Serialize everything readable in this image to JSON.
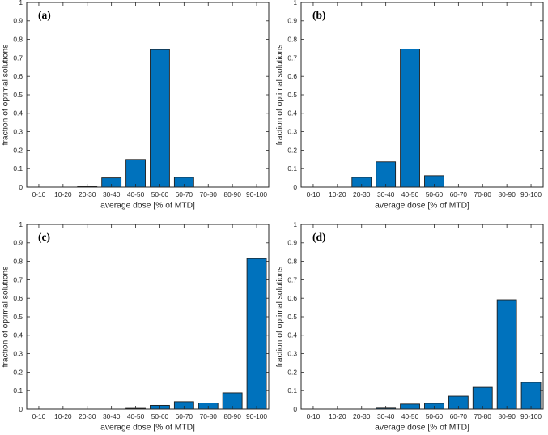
{
  "style": {
    "background": "#ffffff",
    "bar_fill": "#0072BD",
    "bar_edge": "#1f1f1f",
    "axis_color": "#262626",
    "label_color": "#262626",
    "panel_letter_color": "#000000"
  },
  "chart_data": [
    {
      "type": "bar",
      "panel_label": "(a)",
      "categories": [
        "0-10",
        "10-20",
        "20-30",
        "30-40",
        "40-50",
        "50-60",
        "60-70",
        "70-80",
        "80-90",
        "90-100"
      ],
      "values": [
        0,
        0,
        0.004,
        0.05,
        0.15,
        0.745,
        0.053,
        0,
        0,
        0
      ],
      "title": "",
      "xlabel": "average dose [% of MTD]",
      "ylabel": "fraction of optimal solutions",
      "ylim": [
        0,
        1
      ],
      "yticks": [
        0,
        0.1,
        0.2,
        0.3,
        0.4,
        0.5,
        0.6,
        0.7,
        0.8,
        0.9,
        1
      ],
      "ytick_labels": [
        "0",
        "0.1",
        "0.2",
        "0.3",
        "0.4",
        "0.5",
        "0.6",
        "0.7",
        "0.8",
        "0.9",
        "1"
      ],
      "grid": false,
      "legend": "none",
      "bar_width_fraction": 0.8
    },
    {
      "type": "bar",
      "panel_label": "(b)",
      "categories": [
        "0-10",
        "10-20",
        "20-30",
        "30-40",
        "40-50",
        "50-60",
        "60-70",
        "70-80",
        "80-90",
        "90-100"
      ],
      "values": [
        0,
        0,
        0.053,
        0.137,
        0.748,
        0.062,
        0,
        0,
        0,
        0
      ],
      "title": "",
      "xlabel": "average dose [% of MTD]",
      "ylabel": "fraction of optimal solutions",
      "ylim": [
        0,
        1
      ],
      "yticks": [
        0,
        0.1,
        0.2,
        0.3,
        0.4,
        0.5,
        0.6,
        0.7,
        0.8,
        0.9,
        1
      ],
      "ytick_labels": [
        "0",
        "0.1",
        "0.2",
        "0.3",
        "0.4",
        "0.5",
        "0.6",
        "0.7",
        "0.8",
        "0.9",
        "1"
      ],
      "grid": false,
      "legend": "none",
      "bar_width_fraction": 0.8
    },
    {
      "type": "bar",
      "panel_label": "(c)",
      "categories": [
        "0-10",
        "10-20",
        "20-30",
        "30-40",
        "40-50",
        "50-60",
        "60-70",
        "70-80",
        "80-90",
        "90-100"
      ],
      "values": [
        0,
        0,
        0,
        0,
        0.004,
        0.02,
        0.04,
        0.033,
        0.088,
        0.815
      ],
      "title": "",
      "xlabel": "average dose [% of MTD]",
      "ylabel": "fraction of optimal solutions",
      "ylim": [
        0,
        1
      ],
      "yticks": [
        0,
        0.1,
        0.2,
        0.3,
        0.4,
        0.5,
        0.6,
        0.7,
        0.8,
        0.9,
        1
      ],
      "ytick_labels": [
        "0",
        "0.1",
        "0.2",
        "0.3",
        "0.4",
        "0.5",
        "0.6",
        "0.7",
        "0.8",
        "0.9",
        "1"
      ],
      "grid": false,
      "legend": "none",
      "bar_width_fraction": 0.8
    },
    {
      "type": "bar",
      "panel_label": "(d)",
      "categories": [
        "0-10",
        "10-20",
        "20-30",
        "30-40",
        "40-50",
        "50-60",
        "60-70",
        "70-80",
        "80-90",
        "90-100"
      ],
      "values": [
        0,
        0,
        0,
        0.005,
        0.027,
        0.031,
        0.07,
        0.118,
        0.592,
        0.145
      ],
      "title": "",
      "xlabel": "average dose [% of MTD]",
      "ylabel": "fraction of optimal solutions",
      "ylim": [
        0,
        1
      ],
      "yticks": [
        0,
        0.1,
        0.2,
        0.3,
        0.4,
        0.5,
        0.6,
        0.7,
        0.8,
        0.9,
        1
      ],
      "ytick_labels": [
        "0",
        "0.1",
        "0.2",
        "0.3",
        "0.4",
        "0.5",
        "0.6",
        "0.7",
        "0.8",
        "0.9",
        "1"
      ],
      "grid": false,
      "legend": "none",
      "bar_width_fraction": 0.8
    }
  ]
}
